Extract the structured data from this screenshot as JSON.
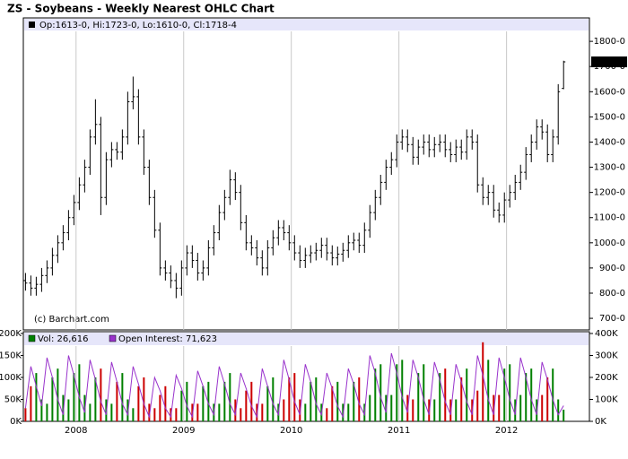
{
  "chart_data": [
    {
      "type": "ohlc",
      "title": "ZS - Soybeans - Weekly Nearest OHLC Chart",
      "info": "Op:1613-0, Hi:1723-0, Lo:1610-0, Cl:1718-4",
      "copyright": "(c) Barchart.com",
      "last_label": "1718-4",
      "color": "#000000",
      "xgrid": true,
      "xlim": [
        2007.51,
        2012.77
      ],
      "xticks": [
        2008,
        2009,
        2010,
        2011,
        2012
      ],
      "ylim": [
        654,
        1893
      ],
      "yticks": [
        {
          "value": 700,
          "label": "700-0"
        },
        {
          "value": 800,
          "label": "800-0"
        },
        {
          "value": 900,
          "label": "900-0"
        },
        {
          "value": 1000,
          "label": "1000-0"
        },
        {
          "value": 1100,
          "label": "1100-0"
        },
        {
          "value": 1200,
          "label": "1200-0"
        },
        {
          "value": 1300,
          "label": "1300-0"
        },
        {
          "value": 1400,
          "label": "1400-0"
        },
        {
          "value": 1500,
          "label": "1500-0"
        },
        {
          "value": 1600,
          "label": "1600-0"
        },
        {
          "value": 1700,
          "label": "1700-0"
        },
        {
          "value": 1800,
          "label": "1800-0"
        }
      ],
      "x": [
        2007.53,
        2007.58,
        2007.63,
        2007.68,
        2007.73,
        2007.78,
        2007.83,
        2007.88,
        2007.93,
        2007.98,
        2008.03,
        2008.08,
        2008.13,
        2008.18,
        2008.23,
        2008.28,
        2008.33,
        2008.38,
        2008.43,
        2008.48,
        2008.53,
        2008.58,
        2008.63,
        2008.68,
        2008.73,
        2008.78,
        2008.83,
        2008.88,
        2008.93,
        2008.98,
        2009.03,
        2009.08,
        2009.13,
        2009.18,
        2009.23,
        2009.28,
        2009.33,
        2009.38,
        2009.43,
        2009.48,
        2009.53,
        2009.58,
        2009.63,
        2009.68,
        2009.73,
        2009.78,
        2009.83,
        2009.88,
        2009.93,
        2009.98,
        2010.03,
        2010.08,
        2010.13,
        2010.18,
        2010.23,
        2010.28,
        2010.33,
        2010.38,
        2010.43,
        2010.48,
        2010.53,
        2010.58,
        2010.63,
        2010.68,
        2010.73,
        2010.78,
        2010.83,
        2010.88,
        2010.93,
        2010.98,
        2011.03,
        2011.08,
        2011.13,
        2011.18,
        2011.23,
        2011.28,
        2011.33,
        2011.38,
        2011.43,
        2011.48,
        2011.53,
        2011.58,
        2011.63,
        2011.68,
        2011.73,
        2011.78,
        2011.83,
        2011.88,
        2011.93,
        2011.98,
        2012.03,
        2012.08,
        2012.13,
        2012.18,
        2012.23,
        2012.28,
        2012.33,
        2012.38,
        2012.43,
        2012.48,
        2012.53
      ],
      "open": [
        850,
        840,
        820,
        835,
        870,
        900,
        950,
        1000,
        1040,
        1100,
        1160,
        1230,
        1300,
        1420,
        1470,
        1180,
        1330,
        1370,
        1360,
        1420,
        1560,
        1580,
        1420,
        1300,
        1180,
        1050,
        900,
        880,
        850,
        820,
        900,
        960,
        930,
        880,
        900,
        980,
        1040,
        1120,
        1180,
        1250,
        1200,
        1080,
        1000,
        980,
        940,
        900,
        980,
        1020,
        1060,
        1040,
        1000,
        960,
        930,
        950,
        960,
        970,
        990,
        960,
        940,
        955,
        970,
        1000,
        1010,
        990,
        1050,
        1120,
        1180,
        1240,
        1300,
        1330,
        1400,
        1420,
        1390,
        1340,
        1380,
        1400,
        1370,
        1390,
        1400,
        1370,
        1350,
        1380,
        1360,
        1420,
        1400,
        1230,
        1180,
        1200,
        1130,
        1110,
        1170,
        1200,
        1240,
        1280,
        1350,
        1400,
        1460,
        1440,
        1350,
        1420,
        1613
      ],
      "high": [
        880,
        870,
        865,
        900,
        930,
        980,
        1030,
        1070,
        1130,
        1190,
        1260,
        1330,
        1450,
        1570,
        1500,
        1360,
        1400,
        1400,
        1450,
        1600,
        1660,
        1610,
        1450,
        1330,
        1210,
        1080,
        930,
        910,
        880,
        930,
        990,
        990,
        960,
        930,
        1010,
        1070,
        1150,
        1210,
        1290,
        1280,
        1230,
        1110,
        1030,
        1010,
        970,
        1010,
        1050,
        1090,
        1090,
        1070,
        1030,
        990,
        980,
        990,
        1000,
        1020,
        1020,
        990,
        985,
        1000,
        1030,
        1040,
        1040,
        1080,
        1150,
        1210,
        1270,
        1330,
        1360,
        1430,
        1450,
        1450,
        1420,
        1410,
        1430,
        1430,
        1420,
        1430,
        1430,
        1400,
        1410,
        1410,
        1450,
        1450,
        1430,
        1260,
        1230,
        1230,
        1160,
        1200,
        1230,
        1270,
        1310,
        1380,
        1430,
        1490,
        1490,
        1470,
        1450,
        1630,
        1723
      ],
      "low": [
        810,
        790,
        790,
        805,
        840,
        870,
        920,
        970,
        1010,
        1070,
        1130,
        1200,
        1270,
        1390,
        1110,
        1150,
        1300,
        1330,
        1330,
        1390,
        1530,
        1390,
        1270,
        1150,
        1020,
        870,
        850,
        820,
        780,
        790,
        870,
        900,
        850,
        850,
        870,
        950,
        1010,
        1090,
        1150,
        1170,
        1050,
        970,
        950,
        910,
        870,
        870,
        950,
        990,
        1010,
        970,
        930,
        900,
        900,
        920,
        930,
        940,
        930,
        910,
        910,
        925,
        940,
        970,
        960,
        960,
        1020,
        1090,
        1150,
        1210,
        1270,
        1300,
        1370,
        1360,
        1310,
        1310,
        1350,
        1340,
        1340,
        1360,
        1340,
        1320,
        1320,
        1330,
        1330,
        1370,
        1200,
        1150,
        1150,
        1100,
        1080,
        1080,
        1140,
        1170,
        1210,
        1250,
        1320,
        1370,
        1410,
        1320,
        1320,
        1390,
        1610
      ],
      "close": [
        840,
        820,
        835,
        870,
        900,
        950,
        1000,
        1040,
        1100,
        1160,
        1230,
        1300,
        1420,
        1470,
        1180,
        1330,
        1370,
        1360,
        1420,
        1560,
        1580,
        1420,
        1300,
        1180,
        1050,
        900,
        880,
        850,
        820,
        900,
        960,
        930,
        880,
        900,
        980,
        1040,
        1120,
        1180,
        1250,
        1200,
        1080,
        1000,
        980,
        940,
        900,
        980,
        1020,
        1060,
        1040,
        1000,
        960,
        930,
        950,
        960,
        970,
        990,
        960,
        940,
        955,
        970,
        1000,
        1010,
        990,
        1050,
        1120,
        1180,
        1240,
        1300,
        1330,
        1400,
        1420,
        1390,
        1340,
        1380,
        1400,
        1370,
        1390,
        1400,
        1370,
        1350,
        1380,
        1360,
        1420,
        1400,
        1230,
        1180,
        1200,
        1130,
        1110,
        1170,
        1200,
        1240,
        1280,
        1350,
        1400,
        1460,
        1440,
        1350,
        1420,
        1600,
        1718.5
      ]
    },
    {
      "type": "volume",
      "up_color": "#008000",
      "down_color": "#cc0000",
      "ylim": [
        0,
        200000
      ],
      "yticks": [
        {
          "value": 0,
          "label": "0K"
        },
        {
          "value": 50000,
          "label": "50K"
        },
        {
          "value": 100000,
          "label": "100K"
        },
        {
          "value": 150000,
          "label": "150K"
        },
        {
          "value": 200000,
          "label": "200K"
        }
      ],
      "y2lim": [
        0,
        400000
      ],
      "y2ticks": [
        {
          "value": 0,
          "label": "0K"
        },
        {
          "value": 100000,
          "label": "100K"
        },
        {
          "value": 200000,
          "label": "200K"
        },
        {
          "value": 300000,
          "label": "300K"
        },
        {
          "value": 400000,
          "label": "400K"
        }
      ],
      "series": [
        {
          "name": "Vol: 26,616",
          "color": "#008000",
          "values": [
            30000,
            80000,
            110000,
            50000,
            40000,
            100000,
            120000,
            60000,
            50000,
            110000,
            130000,
            60000,
            40000,
            100000,
            120000,
            50000,
            40000,
            90000,
            110000,
            50000,
            30000,
            80000,
            100000,
            40000,
            30000,
            60000,
            80000,
            30000,
            30000,
            70000,
            90000,
            40000,
            40000,
            80000,
            90000,
            40000,
            40000,
            90000,
            110000,
            50000,
            30000,
            70000,
            90000,
            40000,
            40000,
            80000,
            100000,
            40000,
            50000,
            100000,
            110000,
            50000,
            40000,
            90000,
            100000,
            40000,
            30000,
            80000,
            90000,
            40000,
            40000,
            90000,
            100000,
            40000,
            60000,
            120000,
            130000,
            60000,
            60000,
            130000,
            140000,
            60000,
            50000,
            110000,
            130000,
            50000,
            50000,
            110000,
            120000,
            50000,
            50000,
            100000,
            120000,
            50000,
            70000,
            180000,
            140000,
            60000,
            60000,
            120000,
            130000,
            50000,
            60000,
            110000,
            120000,
            50000,
            60000,
            100000,
            120000,
            50000,
            26616
          ]
        },
        {
          "name": "Open Interest: 71,623",
          "color": "#9933cc",
          "axis": "y2",
          "values": [
            60000,
            250000,
            160000,
            70000,
            290000,
            200000,
            100000,
            30000,
            300000,
            210000,
            110000,
            40000,
            280000,
            190000,
            90000,
            30000,
            270000,
            180000,
            80000,
            30000,
            250000,
            170000,
            80000,
            20000,
            200000,
            140000,
            60000,
            20000,
            210000,
            150000,
            70000,
            20000,
            230000,
            160000,
            80000,
            30000,
            250000,
            170000,
            80000,
            30000,
            220000,
            150000,
            70000,
            20000,
            240000,
            160000,
            80000,
            30000,
            280000,
            190000,
            90000,
            30000,
            260000,
            180000,
            80000,
            30000,
            220000,
            150000,
            70000,
            20000,
            240000,
            170000,
            80000,
            30000,
            300000,
            220000,
            110000,
            40000,
            310000,
            220000,
            110000,
            40000,
            280000,
            200000,
            100000,
            30000,
            270000,
            190000,
            90000,
            30000,
            260000,
            180000,
            90000,
            30000,
            300000,
            210000,
            100000,
            30000,
            290000,
            200000,
            100000,
            30000,
            290000,
            200000,
            100000,
            30000,
            270000,
            190000,
            100000,
            30000,
            71623
          ]
        }
      ]
    }
  ]
}
